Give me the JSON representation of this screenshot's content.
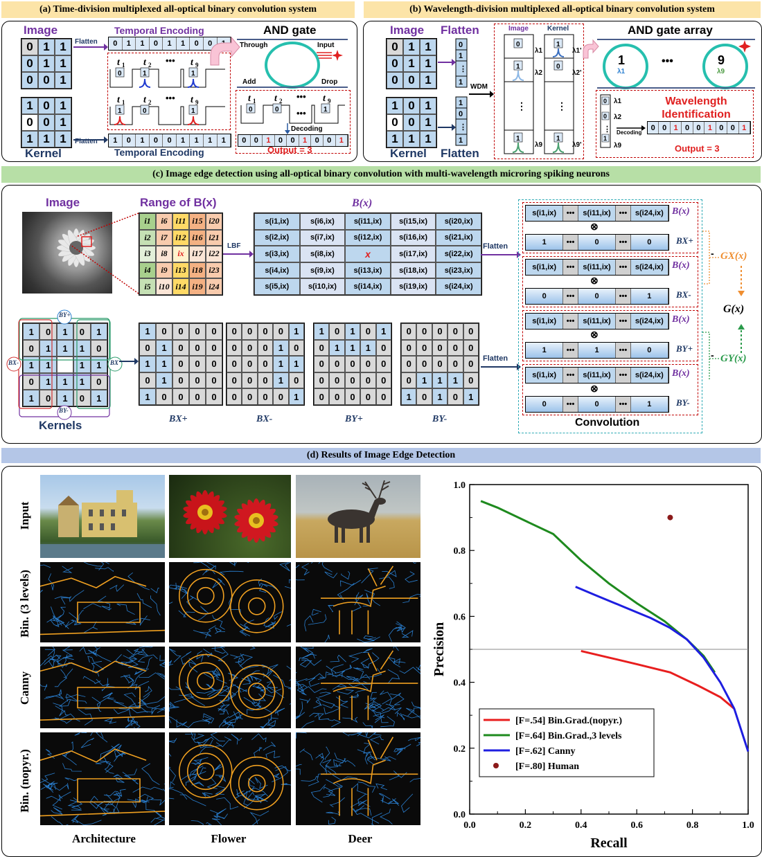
{
  "headers": {
    "a": "(a) Time-division multiplexed all-optical binary convolution system",
    "b": "(b) Wavelength-division multiplexed all-optical binary convolution system",
    "c": "(c) Image edge detection using all-optical binary convolution with multi-wavelength microring spiking neurons",
    "d": "(d) Results of Image Edge Detection"
  },
  "panel_a": {
    "image_label": "Image",
    "kernel_label": "Kernel",
    "flatten": "Flatten",
    "temporal_encoding": "Temporal Encoding",
    "image_matrix": [
      [
        "0",
        "1",
        "1"
      ],
      [
        "0",
        "1",
        "1"
      ],
      [
        "0",
        "0",
        "1"
      ]
    ],
    "kernel_matrix": [
      [
        "1",
        "0",
        "1"
      ],
      [
        "0",
        "0",
        "1"
      ],
      [
        "1",
        "1",
        "1"
      ]
    ],
    "image_seq": [
      "0",
      "1",
      "1",
      "0",
      "1",
      "1",
      "0",
      "0",
      "1"
    ],
    "kernel_seq": [
      "1",
      "0",
      "1",
      "0",
      "0",
      "1",
      "1",
      "1",
      "1"
    ],
    "t1": "t1",
    "t2": "t2",
    "t9": "t9",
    "dots": "•••",
    "and_gate": "AND gate",
    "through": "Through",
    "input": "Input",
    "add": "Add",
    "drop": "Drop",
    "decoding": "Decoding",
    "output_seq": [
      "0",
      "0",
      "1",
      "0",
      "0",
      "1",
      "0",
      "0",
      "1"
    ],
    "output": "Output = 3"
  },
  "panel_b": {
    "image_label": "Image",
    "kernel_label": "Kernel",
    "flatten": "Flatten",
    "wdm": "WDM",
    "col_image": "Image",
    "col_kernel": "Kernel",
    "and_gate_array": "AND gate array",
    "ring1": "1",
    "ring1_sub": "λ1",
    "ring9": "9",
    "ring9_sub": "λ9",
    "dots": "•••",
    "lambda1": "λ1",
    "lambda2": "λ2",
    "lambda9": "λ9",
    "lambda1p": "λ1'",
    "lambda2p": "λ2'",
    "lambda9p": "λ9'",
    "wavelength_id": "Wavelength Identification",
    "decoding": "Decoding",
    "output_seq": [
      "0",
      "0",
      "1",
      "0",
      "0",
      "1",
      "0",
      "0",
      "1"
    ],
    "output": "Output = 3"
  },
  "panel_c": {
    "image_label": "Image",
    "range_label": "Range of B(x)",
    "bx_label": "B(x)",
    "lbf": "LBF",
    "flatten": "Flatten",
    "kernels_label": "Kernels",
    "convolution": "Convolution",
    "gx": "GX(x)",
    "gy": "GY(x)",
    "g": "G(x)",
    "otimes": "⊗",
    "minus": "-",
    "range_grid": [
      [
        "i1",
        "i6",
        "i11",
        "i15",
        "i20"
      ],
      [
        "i2",
        "i7",
        "i12",
        "i16",
        "i21"
      ],
      [
        "i3",
        "i8",
        "ix",
        "i17",
        "i22"
      ],
      [
        "i4",
        "i9",
        "i13",
        "i18",
        "i23"
      ],
      [
        "i5",
        "i10",
        "i14",
        "i19",
        "i24"
      ]
    ],
    "s_grid": [
      [
        "s(i1,ix)",
        "s(i6,ix)",
        "s(i11,ix)",
        "s(i15,ix)",
        "s(i20,ix)"
      ],
      [
        "s(i2,ix)",
        "s(i7,ix)",
        "s(i12,ix)",
        "s(i16,ix)",
        "s(i21,ix)"
      ],
      [
        "s(i3,ix)",
        "s(i8,ix)",
        "x",
        "s(i17,ix)",
        "s(i22,ix)"
      ],
      [
        "s(i4,ix)",
        "s(i9,ix)",
        "s(i13,ix)",
        "s(i18,ix)",
        "s(i23,ix)"
      ],
      [
        "s(i5,ix)",
        "s(i10,ix)",
        "s(i14,ix)",
        "s(i19,ix)",
        "s(i24,ix)"
      ]
    ],
    "kernel_combined": [
      [
        "1",
        "0",
        "1",
        "0",
        "1"
      ],
      [
        "0",
        "1",
        "1",
        "1",
        "0"
      ],
      [
        "1",
        "1",
        "",
        "1",
        "1"
      ],
      [
        "0",
        "1",
        "1",
        "1",
        "0"
      ],
      [
        "1",
        "0",
        "1",
        "0",
        "1"
      ]
    ],
    "kernel_tags": {
      "byp": "BY+",
      "bym": "BY-",
      "bxm": "BX-",
      "bxp": "BX"
    },
    "bxp_grid": [
      [
        "1",
        "0",
        "0",
        "0",
        "0"
      ],
      [
        "0",
        "1",
        "0",
        "0",
        "0"
      ],
      [
        "1",
        "1",
        "0",
        "0",
        "0"
      ],
      [
        "0",
        "1",
        "0",
        "0",
        "0"
      ],
      [
        "1",
        "0",
        "0",
        "0",
        "0"
      ]
    ],
    "bxm_grid": [
      [
        "0",
        "0",
        "0",
        "0",
        "1"
      ],
      [
        "0",
        "0",
        "0",
        "1",
        "0"
      ],
      [
        "0",
        "0",
        "0",
        "1",
        "1"
      ],
      [
        "0",
        "0",
        "0",
        "1",
        "0"
      ],
      [
        "0",
        "0",
        "0",
        "0",
        "1"
      ]
    ],
    "byp_grid": [
      [
        "1",
        "0",
        "1",
        "0",
        "1"
      ],
      [
        "0",
        "1",
        "1",
        "1",
        "0"
      ],
      [
        "0",
        "0",
        "0",
        "0",
        "0"
      ],
      [
        "0",
        "0",
        "0",
        "0",
        "0"
      ],
      [
        "0",
        "0",
        "0",
        "0",
        "0"
      ]
    ],
    "bym_grid": [
      [
        "0",
        "0",
        "0",
        "0",
        "0"
      ],
      [
        "0",
        "0",
        "0",
        "0",
        "0"
      ],
      [
        "0",
        "0",
        "0",
        "0",
        "0"
      ],
      [
        "0",
        "1",
        "1",
        "1",
        "0"
      ],
      [
        "1",
        "0",
        "1",
        "0",
        "1"
      ]
    ],
    "bxp_label": "BX+",
    "bxm_label": "BX-",
    "byp_label": "BY+",
    "bym_label": "BY-",
    "conv_top": [
      "s(i1,ix)",
      "•••",
      "s(i11,ix)",
      "•••",
      "s(i24,ix)"
    ],
    "conv_k1": [
      "1",
      "•••",
      "0",
      "•••",
      "0"
    ],
    "conv_k2": [
      "0",
      "•••",
      "0",
      "•••",
      "1"
    ],
    "conv_k3": [
      "1",
      "•••",
      "1",
      "•••",
      "0"
    ],
    "conv_k4": [
      "0",
      "•••",
      "0",
      "•••",
      "1"
    ]
  },
  "panel_d": {
    "rows": [
      "Input",
      "Bin. (3 levels)",
      "Canny",
      "Bin. (nopyr.)"
    ],
    "cols": [
      "Architecture",
      "Flower",
      "Deer"
    ],
    "colors": {
      "edge_orange": "#f0a020",
      "edge_blue": "#2a7fd0"
    }
  },
  "chart_data": {
    "type": "line",
    "xlabel": "Recall",
    "ylabel": "Precision",
    "xlim": [
      0,
      1
    ],
    "ylim": [
      0,
      1
    ],
    "xticks": [
      "0.0",
      "0.2",
      "0.4",
      "0.6",
      "0.8",
      "1.0"
    ],
    "yticks": [
      "0.0",
      "0.2",
      "0.4",
      "0.6",
      "0.8",
      "1.0"
    ],
    "hline": 0.5,
    "legend_position": "bottom-left",
    "series": [
      {
        "name": "[F=.54] Bin.Grad.(nopyr.)",
        "color": "#e81e1e",
        "x": [
          0.4,
          0.5,
          0.6,
          0.72,
          0.82,
          0.9,
          0.95
        ],
        "y": [
          0.495,
          0.475,
          0.455,
          0.43,
          0.39,
          0.355,
          0.32
        ]
      },
      {
        "name": "[F=.64] Bin.Grad.,3 levels",
        "color": "#1e8a1e",
        "x": [
          0.04,
          0.1,
          0.2,
          0.3,
          0.4,
          0.5,
          0.6,
          0.7,
          0.78,
          0.84,
          0.88
        ],
        "y": [
          0.95,
          0.93,
          0.89,
          0.85,
          0.77,
          0.7,
          0.64,
          0.585,
          0.53,
          0.48,
          0.43
        ]
      },
      {
        "name": "[F=.62] Canny",
        "color": "#1e1ee0",
        "x": [
          0.38,
          0.45,
          0.55,
          0.65,
          0.72,
          0.78,
          0.84,
          0.9,
          0.95,
          1.0
        ],
        "y": [
          0.69,
          0.665,
          0.63,
          0.595,
          0.565,
          0.53,
          0.475,
          0.4,
          0.32,
          0.19
        ]
      },
      {
        "name": "[F=.80] Human",
        "color": "#8b1a1a",
        "type": "scatter",
        "x": [
          0.72
        ],
        "y": [
          0.9
        ]
      }
    ]
  }
}
